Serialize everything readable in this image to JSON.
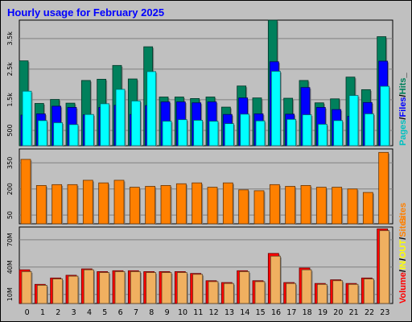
{
  "colors": {
    "background": "#c0c0c0",
    "plot": "#c0c0c0",
    "hits": "#00805c",
    "files": "#0000ff",
    "pages": "#00ffff",
    "sites": "#ff8000",
    "volume": "#ff0000",
    "in": "#ffff00",
    "out": "#f0b060",
    "title": "#0000ff",
    "slash": "#000000"
  },
  "chart_data": [
    {
      "type": "bar",
      "title": "Hourly usage for February 2025",
      "categories": [
        "0",
        "1",
        "2",
        "3",
        "4",
        "5",
        "6",
        "7",
        "8",
        "9",
        "10",
        "11",
        "12",
        "13",
        "14",
        "15",
        "16",
        "17",
        "18",
        "19",
        "20",
        "21",
        "22",
        "23"
      ],
      "ylim": [
        0,
        4100
      ],
      "yticks": [
        500,
        1500,
        2500,
        3500
      ],
      "ytick_labels": [
        "500",
        "1.5k",
        "2.5k",
        "3.5k"
      ],
      "side_labels": [
        {
          "text": "Pages",
          "color": "#00c0c0"
        },
        {
          "text": "/",
          "color": "#000000"
        },
        {
          "text": "Files",
          "color": "#0000ff"
        },
        {
          "text": "/",
          "color": "#000000"
        },
        {
          "text": "Hits",
          "color": "#00805c"
        },
        {
          "text": "_",
          "color": "#000000"
        }
      ],
      "series": [
        {
          "name": "Hits",
          "values": [
            2770,
            1380,
            1510,
            1390,
            2130,
            2170,
            2620,
            2180,
            3230,
            1590,
            1590,
            1540,
            1590,
            1260,
            1950,
            1560,
            4100,
            1550,
            2130,
            1400,
            1530,
            2240,
            1830,
            3560
          ]
        },
        {
          "name": "Files",
          "values": [
            1000,
            1040,
            1290,
            1250,
            1010,
            1250,
            1320,
            1020,
            1310,
            1430,
            1430,
            1400,
            1430,
            1020,
            1560,
            1040,
            2740,
            1030,
            1900,
            1250,
            1180,
            960,
            1410,
            2760
          ]
        },
        {
          "name": "Pages",
          "values": [
            1780,
            820,
            750,
            690,
            1020,
            1370,
            1840,
            1460,
            2420,
            800,
            850,
            830,
            800,
            720,
            1030,
            810,
            2430,
            860,
            1010,
            700,
            820,
            1640,
            1040,
            1940
          ]
        }
      ]
    },
    {
      "type": "bar",
      "categories": [
        "0",
        "1",
        "2",
        "3",
        "4",
        "5",
        "6",
        "7",
        "8",
        "9",
        "10",
        "11",
        "12",
        "13",
        "14",
        "15",
        "16",
        "17",
        "18",
        "19",
        "20",
        "21",
        "22",
        "23"
      ],
      "ylim": [
        0,
        430
      ],
      "yticks": [
        50,
        200,
        350
      ],
      "ytick_labels": [
        "50",
        "200",
        "350"
      ],
      "side_labels": [
        {
          "text": "Sites",
          "color": "#ff8000"
        }
      ],
      "series": [
        {
          "name": "Sites",
          "values": [
            370,
            220,
            225,
            225,
            250,
            235,
            250,
            210,
            215,
            220,
            230,
            235,
            210,
            235,
            195,
            190,
            225,
            215,
            220,
            210,
            210,
            200,
            180,
            410
          ]
        }
      ]
    },
    {
      "type": "bar",
      "categories": [
        "0",
        "1",
        "2",
        "3",
        "4",
        "5",
        "6",
        "7",
        "8",
        "9",
        "10",
        "11",
        "12",
        "13",
        "14",
        "15",
        "16",
        "17",
        "18",
        "19",
        "20",
        "21",
        "22",
        "23"
      ],
      "ylim": [
        0,
        84
      ],
      "yticks": [
        10,
        40,
        70
      ],
      "ytick_labels": [
        "10M",
        "40M",
        "70M"
      ],
      "side_labels": [
        {
          "text": "Volume",
          "color": "#ff0000"
        },
        {
          "text": "/",
          "color": "#000000"
        },
        {
          "text": "IN",
          "color": "#ffff00"
        },
        {
          "text": "/",
          "color": "#000000"
        },
        {
          "text": "OUT",
          "color": "#ffff00"
        },
        {
          "text": "/",
          "color": "#000000"
        },
        {
          "text": "Sites",
          "color": "#ff8000"
        }
      ],
      "series": [
        {
          "name": "Volume",
          "values": [
            37,
            21,
            28,
            31,
            38,
            35,
            36,
            36,
            35,
            35,
            35,
            33,
            25,
            23,
            36,
            25,
            55,
            23,
            39,
            22,
            26,
            22,
            28,
            82
          ]
        },
        {
          "name": "OUT",
          "values": [
            35,
            20,
            27,
            30,
            37,
            34,
            35,
            35,
            34,
            34,
            34,
            32,
            24,
            22,
            35,
            24,
            52,
            22,
            37,
            21,
            25,
            21,
            27,
            80
          ]
        }
      ]
    }
  ]
}
